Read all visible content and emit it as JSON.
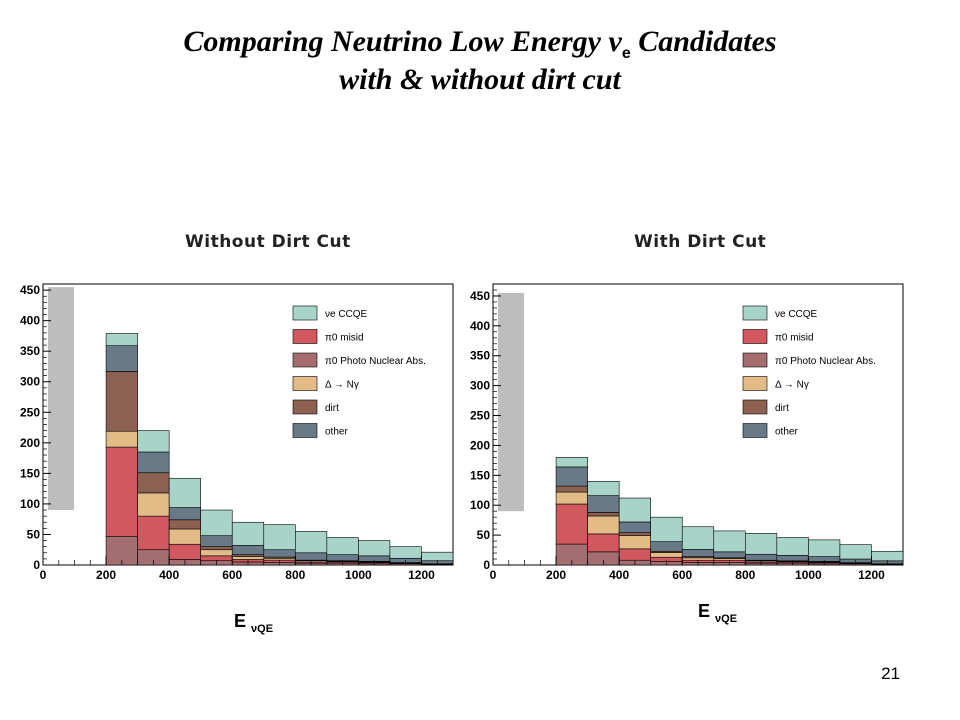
{
  "slide": {
    "title_line1_pre": "Comparing Neutrino Low Energy",
    "title_nu": "ν",
    "title_sub": "e",
    "title_line1_post": "Candidates",
    "title_line2": "with & without dirt cut",
    "page_number": "21"
  },
  "xlabel": {
    "main": "E",
    "sub": "νQE"
  },
  "legend": [
    {
      "key": "nue_ccqe",
      "label": "νe CCQE",
      "color": "#a8d3c8"
    },
    {
      "key": "pi0_misid",
      "label": "π0 misid",
      "color": "#d0585e"
    },
    {
      "key": "pi0_photo",
      "label": "π0 Photo Nuclear Abs.",
      "color": "#a46e70"
    },
    {
      "key": "delta",
      "label": "Δ → Nγ",
      "color": "#e2bb87"
    },
    {
      "key": "dirt",
      "label": "dirt",
      "color": "#8c6152"
    },
    {
      "key": "other",
      "label": "other",
      "color": "#687a88"
    }
  ],
  "chart_data": [
    {
      "type": "bar",
      "stacked": true,
      "title": "Without Dirt Cut",
      "xlabel": "EνQE",
      "xlim": [
        0,
        1300
      ],
      "ylim": [
        0,
        460
      ],
      "xticks": [
        0,
        200,
        400,
        600,
        800,
        1000,
        1200
      ],
      "yticks": [
        0,
        50,
        100,
        150,
        200,
        250,
        300,
        350,
        400,
        450
      ],
      "bins": [
        [
          200,
          300
        ],
        [
          300,
          400
        ],
        [
          400,
          500
        ],
        [
          500,
          600
        ],
        [
          600,
          700
        ],
        [
          700,
          800
        ],
        [
          800,
          900
        ],
        [
          900,
          1000
        ],
        [
          1000,
          1100
        ],
        [
          1100,
          1200
        ],
        [
          1200,
          1300
        ]
      ],
      "stack_order": [
        "pi0_photo",
        "pi0_misid",
        "delta",
        "dirt",
        "other",
        "nue_ccqe"
      ],
      "series": {
        "pi0_photo": [
          47,
          25,
          9,
          7,
          5,
          4,
          3,
          3,
          2,
          2,
          1
        ],
        "pi0_misid": [
          146,
          55,
          25,
          8,
          4,
          4,
          2,
          2,
          2,
          1,
          1
        ],
        "delta": [
          26,
          38,
          25,
          10,
          5,
          3,
          2,
          1,
          1,
          1,
          0
        ],
        "dirt": [
          98,
          33,
          15,
          5,
          3,
          2,
          1,
          1,
          1,
          0,
          0
        ],
        "other": [
          42,
          34,
          20,
          18,
          15,
          12,
          12,
          10,
          9,
          7,
          5
        ],
        "nue_ccqe": [
          20,
          35,
          48,
          42,
          38,
          41,
          35,
          28,
          25,
          19,
          14
        ]
      }
    },
    {
      "type": "bar",
      "stacked": true,
      "title": "With Dirt Cut",
      "xlabel": "EνQE",
      "xlim": [
        0,
        1300
      ],
      "ylim": [
        0,
        470
      ],
      "xticks": [
        0,
        200,
        400,
        600,
        800,
        1000,
        1200
      ],
      "yticks": [
        0,
        50,
        100,
        150,
        200,
        250,
        300,
        350,
        400,
        450
      ],
      "bins": [
        [
          200,
          300
        ],
        [
          300,
          400
        ],
        [
          400,
          500
        ],
        [
          500,
          600
        ],
        [
          600,
          700
        ],
        [
          700,
          800
        ],
        [
          800,
          900
        ],
        [
          900,
          1000
        ],
        [
          1000,
          1100
        ],
        [
          1100,
          1200
        ],
        [
          1200,
          1300
        ]
      ],
      "stack_order": [
        "pi0_photo",
        "pi0_misid",
        "delta",
        "dirt",
        "other",
        "nue_ccqe"
      ],
      "series": {
        "pi0_photo": [
          35,
          22,
          8,
          6,
          4,
          4,
          3,
          3,
          2,
          2,
          1
        ],
        "pi0_misid": [
          67,
          30,
          19,
          7,
          4,
          4,
          2,
          2,
          2,
          1,
          1
        ],
        "delta": [
          20,
          30,
          22,
          8,
          4,
          3,
          2,
          1,
          1,
          1,
          0
        ],
        "dirt": [
          10,
          6,
          5,
          2,
          2,
          1,
          1,
          1,
          1,
          0,
          0
        ],
        "other": [
          32,
          28,
          18,
          16,
          12,
          10,
          10,
          9,
          8,
          6,
          5
        ],
        "nue_ccqe": [
          16,
          24,
          40,
          41,
          38,
          35,
          35,
          30,
          28,
          24,
          16
        ]
      }
    }
  ]
}
